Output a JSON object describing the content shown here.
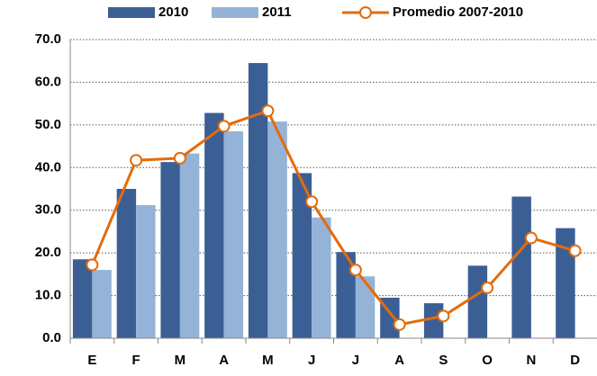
{
  "chart_data": {
    "type": "bar-line",
    "categories": [
      "E",
      "F",
      "M",
      "A",
      "M",
      "J",
      "J",
      "A",
      "S",
      "O",
      "N",
      "D"
    ],
    "series": [
      {
        "name": "2010",
        "type": "bar",
        "color": "#3b5f95",
        "values": [
          18.5,
          35.0,
          41.3,
          52.8,
          64.5,
          38.7,
          20.2,
          9.5,
          8.2,
          17.0,
          33.2,
          25.8
        ]
      },
      {
        "name": "2011",
        "type": "bar",
        "color": "#95b3d7",
        "values": [
          16.0,
          31.2,
          43.3,
          48.5,
          50.8,
          28.3,
          14.5,
          null,
          null,
          null,
          null,
          null
        ]
      },
      {
        "name": "Promedio 2007-2010",
        "type": "line",
        "color": "#e46c0a",
        "values": [
          17.2,
          41.7,
          42.2,
          49.7,
          53.3,
          32.0,
          16.0,
          3.2,
          5.2,
          11.8,
          23.5,
          20.5
        ]
      }
    ],
    "ylim": [
      0,
      70
    ],
    "yticks": [
      {
        "value": 0,
        "label": "0.0"
      },
      {
        "value": 10,
        "label": "10.0"
      },
      {
        "value": 20,
        "label": "20.0"
      },
      {
        "value": 30,
        "label": "30.0"
      },
      {
        "value": 40,
        "label": "40.0"
      },
      {
        "value": 50,
        "label": "50.0"
      },
      {
        "value": 60,
        "label": "60.0"
      },
      {
        "value": 70,
        "label": "70.0"
      }
    ],
    "grid": true,
    "legend": "top"
  }
}
